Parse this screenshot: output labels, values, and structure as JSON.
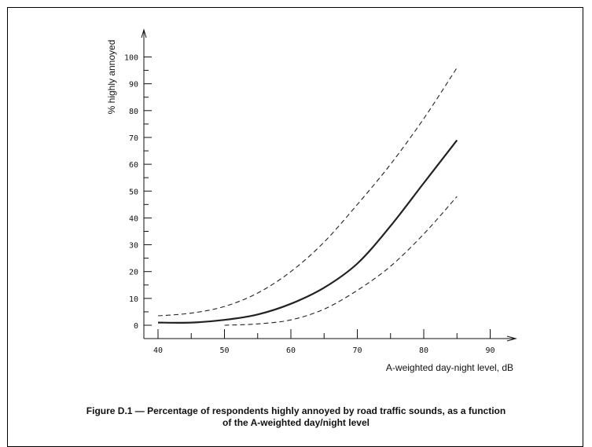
{
  "chart_data": {
    "type": "line",
    "xlabel": "A-weighted day-night level, dB",
    "ylabel": "% highly annoyed",
    "xlim": [
      38,
      95
    ],
    "ylim": [
      -5,
      110
    ],
    "xticks": [
      40,
      50,
      60,
      70,
      80,
      90
    ],
    "yticks": [
      0,
      10,
      20,
      30,
      40,
      50,
      60,
      70,
      80,
      90,
      100
    ],
    "grid": false,
    "series": [
      {
        "style": "solid",
        "x": [
          40,
          45,
          50,
          55,
          60,
          65,
          70,
          75,
          80,
          85
        ],
        "y": [
          1,
          1,
          2,
          4,
          8,
          14,
          23,
          37,
          53,
          69
        ]
      },
      {
        "style": "dashed",
        "x": [
          40,
          45,
          50,
          55,
          60,
          65,
          70,
          75,
          80,
          85
        ],
        "y": [
          3.5,
          4.5,
          7,
          12,
          20,
          31,
          45,
          60,
          77,
          96
        ]
      },
      {
        "style": "dashed",
        "x": [
          50,
          55,
          60,
          65,
          70,
          75,
          80,
          85
        ],
        "y": [
          0,
          0.5,
          2,
          6,
          13,
          22,
          34,
          48
        ]
      }
    ]
  },
  "caption": {
    "line1": "Figure D.1 — Percentage of respondents highly annoyed by road traffic sounds, as a function",
    "line2": "of the A-weighted day/night level"
  }
}
